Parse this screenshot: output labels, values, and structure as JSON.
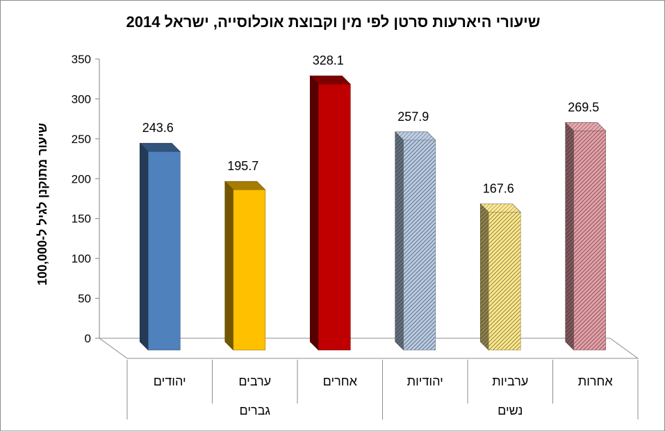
{
  "chart_data": {
    "type": "bar",
    "title": "שיעורי היארעות סרטן לפי מין וקבוצת אוכלוסייה, ישראל 2014",
    "ylabel": "שיעור מתוקנן לגיל ל-100,000",
    "xlabel": "",
    "ylim": [
      0,
      350
    ],
    "y_ticks": [
      "0",
      "50",
      "100",
      "150",
      "200",
      "250",
      "300",
      "350"
    ],
    "y_tick_values": [
      0,
      50,
      100,
      150,
      200,
      250,
      300,
      350
    ],
    "grid": false,
    "legend": "none",
    "categories": [
      "יהודים",
      "ערבים",
      "אחרים",
      "יהודיות",
      "ערביות",
      "אחרות"
    ],
    "groups": [
      {
        "label": "גברים",
        "categories": [
          "יהודים",
          "ערבים",
          "אחרים"
        ]
      },
      {
        "label": "נשים",
        "categories": [
          "יהודיות",
          "ערביות",
          "אחרות"
        ]
      }
    ],
    "values": [
      243.6,
      195.7,
      328.1,
      257.9,
      167.6,
      269.5
    ],
    "value_labels": [
      "243.6",
      "195.7",
      "328.1",
      "257.9",
      "167.6",
      "269.5"
    ],
    "bar_colors": [
      "#4f81bd",
      "#ffc000",
      "#c00000",
      "#b8cce4",
      "#ffe98a",
      "#e6a0a8"
    ],
    "bar_patterns": [
      "solid",
      "solid",
      "solid",
      "hatched",
      "hatched",
      "hatched"
    ]
  }
}
